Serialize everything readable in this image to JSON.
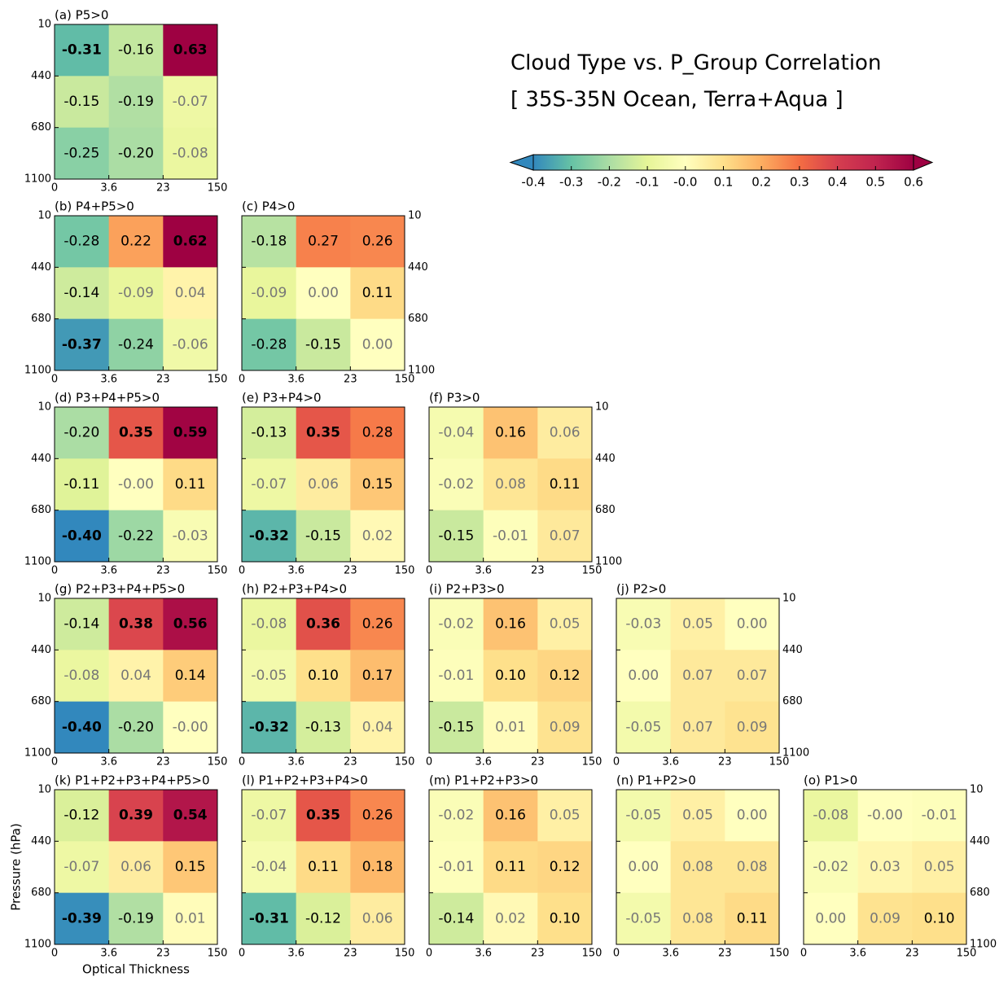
{
  "chart_data": {
    "type": "heatmap",
    "title": "Cloud Type vs. P_Group Correlation",
    "subtitle": "[ 35S-35N Ocean, Terra+Aqua ]",
    "x_label": "Optical Thickness",
    "y_label": "Pressure (hPa)",
    "x_edges": [
      0,
      3.6,
      23,
      150
    ],
    "y_edges": [
      10,
      440,
      680,
      1100
    ],
    "clim": [
      -0.4,
      0.6
    ],
    "colorbar_extend": "both",
    "colorbar_ticks": [
      -0.4,
      -0.3,
      -0.2,
      -0.1,
      {
        "value": 0,
        "label": "-0.0"
      },
      0.1,
      0.2,
      0.3,
      0.4,
      0.5,
      0.6
    ],
    "colormap": [
      "#3288bd",
      "#66c2a5",
      "#abdda4",
      "#e6f598",
      "#ffffbf",
      "#fee08b",
      "#fdae61",
      "#f46d43",
      "#d53e4f",
      "#c0244f",
      "#9e0142"
    ],
    "panels": [
      {
        "title": "(a) P5>0",
        "values": [
          [
            -0.31,
            -0.16,
            0.63
          ],
          [
            -0.15,
            -0.19,
            -0.07
          ],
          [
            -0.25,
            -0.2,
            -0.08
          ]
        ],
        "value_labels": [
          [
            "-0.31",
            "-0.16",
            "0.63"
          ],
          [
            "-0.15",
            "-0.19",
            "-0.07"
          ],
          [
            "-0.25",
            "-0.20",
            "-0.08"
          ]
        ]
      },
      {
        "title": "(b) P4+P5>0",
        "values": [
          [
            -0.28,
            0.22,
            0.62
          ],
          [
            -0.14,
            -0.09,
            0.04
          ],
          [
            -0.37,
            -0.24,
            -0.06
          ]
        ],
        "value_labels": [
          [
            "-0.28",
            "0.22",
            "0.62"
          ],
          [
            "-0.14",
            "-0.09",
            "0.04"
          ],
          [
            "-0.37",
            "-0.24",
            "-0.06"
          ]
        ]
      },
      {
        "title": "(c) P4>0",
        "values": [
          [
            -0.18,
            0.27,
            0.26
          ],
          [
            -0.09,
            0,
            0.11
          ],
          [
            -0.28,
            -0.15,
            0
          ]
        ],
        "value_labels": [
          [
            "-0.18",
            "0.27",
            "0.26"
          ],
          [
            "-0.09",
            "0.00",
            "0.11"
          ],
          [
            "-0.28",
            "-0.15",
            "0.00"
          ]
        ]
      },
      {
        "title": "(d) P3+P4+P5>0",
        "values": [
          [
            -0.2,
            0.35,
            0.59
          ],
          [
            -0.11,
            0,
            0.11
          ],
          [
            -0.4,
            -0.22,
            -0.03
          ]
        ],
        "value_labels": [
          [
            "-0.20",
            "0.35",
            "0.59"
          ],
          [
            "-0.11",
            "-0.00",
            "0.11"
          ],
          [
            "-0.40",
            "-0.22",
            "-0.03"
          ]
        ]
      },
      {
        "title": "(e) P3+P4>0",
        "values": [
          [
            -0.13,
            0.35,
            0.28
          ],
          [
            -0.07,
            0.06,
            0.15
          ],
          [
            -0.32,
            -0.15,
            0.02
          ]
        ],
        "value_labels": [
          [
            "-0.13",
            "0.35",
            "0.28"
          ],
          [
            "-0.07",
            "0.06",
            "0.15"
          ],
          [
            "-0.32",
            "-0.15",
            "0.02"
          ]
        ]
      },
      {
        "title": "(f) P3>0",
        "values": [
          [
            -0.04,
            0.16,
            0.06
          ],
          [
            -0.02,
            0.08,
            0.11
          ],
          [
            -0.15,
            -0.01,
            0.07
          ]
        ],
        "value_labels": [
          [
            "-0.04",
            "0.16",
            "0.06"
          ],
          [
            "-0.02",
            "0.08",
            "0.11"
          ],
          [
            "-0.15",
            "-0.01",
            "0.07"
          ]
        ]
      },
      {
        "title": "(g) P2+P3+P4+P5>0",
        "values": [
          [
            -0.14,
            0.38,
            0.56
          ],
          [
            -0.08,
            0.04,
            0.14
          ],
          [
            -0.4,
            -0.2,
            0
          ]
        ],
        "value_labels": [
          [
            "-0.14",
            "0.38",
            "0.56"
          ],
          [
            "-0.08",
            "0.04",
            "0.14"
          ],
          [
            "-0.40",
            "-0.20",
            "-0.00"
          ]
        ]
      },
      {
        "title": "(h) P2+P3+P4>0",
        "values": [
          [
            -0.08,
            0.36,
            0.26
          ],
          [
            -0.05,
            0.1,
            0.17
          ],
          [
            -0.32,
            -0.13,
            0.04
          ]
        ],
        "value_labels": [
          [
            "-0.08",
            "0.36",
            "0.26"
          ],
          [
            "-0.05",
            "0.10",
            "0.17"
          ],
          [
            "-0.32",
            "-0.13",
            "0.04"
          ]
        ]
      },
      {
        "title": "(i) P2+P3>0",
        "values": [
          [
            -0.02,
            0.16,
            0.05
          ],
          [
            -0.01,
            0.1,
            0.12
          ],
          [
            -0.15,
            0.01,
            0.09
          ]
        ],
        "value_labels": [
          [
            "-0.02",
            "0.16",
            "0.05"
          ],
          [
            "-0.01",
            "0.10",
            "0.12"
          ],
          [
            "-0.15",
            "0.01",
            "0.09"
          ]
        ]
      },
      {
        "title": "(j) P2>0",
        "values": [
          [
            -0.03,
            0.05,
            0
          ],
          [
            0,
            0.07,
            0.07
          ],
          [
            -0.05,
            0.07,
            0.09
          ]
        ],
        "value_labels": [
          [
            "-0.03",
            "0.05",
            "0.00"
          ],
          [
            "0.00",
            "0.07",
            "0.07"
          ],
          [
            "-0.05",
            "0.07",
            "0.09"
          ]
        ]
      },
      {
        "title": "(k) P1+P2+P3+P4+P5>0",
        "values": [
          [
            -0.12,
            0.39,
            0.54
          ],
          [
            -0.07,
            0.06,
            0.15
          ],
          [
            -0.39,
            -0.19,
            0.01
          ]
        ],
        "value_labels": [
          [
            "-0.12",
            "0.39",
            "0.54"
          ],
          [
            "-0.07",
            "0.06",
            "0.15"
          ],
          [
            "-0.39",
            "-0.19",
            "0.01"
          ]
        ]
      },
      {
        "title": "(l) P1+P2+P3+P4>0",
        "values": [
          [
            -0.07,
            0.35,
            0.26
          ],
          [
            -0.04,
            0.11,
            0.18
          ],
          [
            -0.31,
            -0.12,
            0.06
          ]
        ],
        "value_labels": [
          [
            "-0.07",
            "0.35",
            "0.26"
          ],
          [
            "-0.04",
            "0.11",
            "0.18"
          ],
          [
            "-0.31",
            "-0.12",
            "0.06"
          ]
        ]
      },
      {
        "title": "(m) P1+P2+P3>0",
        "values": [
          [
            -0.02,
            0.16,
            0.05
          ],
          [
            -0.01,
            0.11,
            0.12
          ],
          [
            -0.14,
            0.02,
            0.1
          ]
        ],
        "value_labels": [
          [
            "-0.02",
            "0.16",
            "0.05"
          ],
          [
            "-0.01",
            "0.11",
            "0.12"
          ],
          [
            "-0.14",
            "0.02",
            "0.10"
          ]
        ]
      },
      {
        "title": "(n) P1+P2>0",
        "values": [
          [
            -0.05,
            0.05,
            0
          ],
          [
            0,
            0.08,
            0.08
          ],
          [
            -0.05,
            0.08,
            0.11
          ]
        ],
        "value_labels": [
          [
            "-0.05",
            "0.05",
            "0.00"
          ],
          [
            "0.00",
            "0.08",
            "0.08"
          ],
          [
            "-0.05",
            "0.08",
            "0.11"
          ]
        ]
      },
      {
        "title": "(o) P1>0",
        "values": [
          [
            -0.08,
            0,
            -0.01
          ],
          [
            -0.02,
            0.03,
            0.05
          ],
          [
            0,
            0.09,
            0.1
          ]
        ],
        "value_labels": [
          [
            "-0.08",
            "-0.00",
            "-0.01"
          ],
          [
            "-0.02",
            "0.03",
            "0.05"
          ],
          [
            "0.00",
            "0.09",
            "0.10"
          ]
        ]
      }
    ]
  }
}
